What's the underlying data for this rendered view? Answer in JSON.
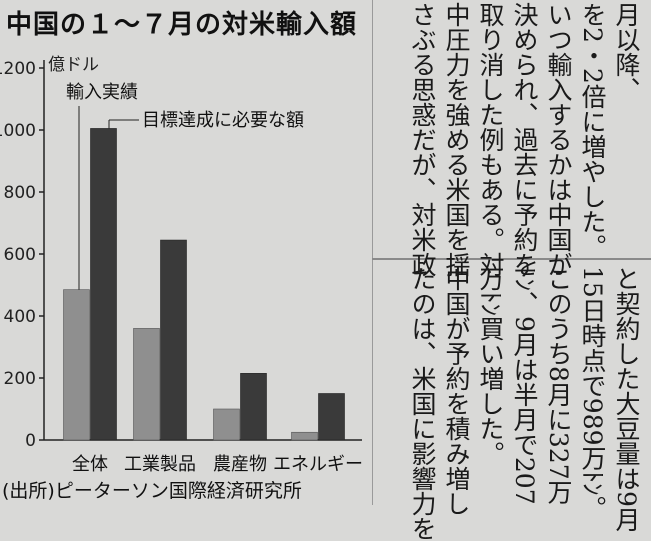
{
  "chart": {
    "title": "中国の１～７月の対米輸入額",
    "unit": "億ドル",
    "series_labels": {
      "actual": "輸入実績",
      "target": "目標達成に必要な額"
    },
    "source": "(出所)ピーターソン国際経済研究所",
    "colors": {
      "actual": "#8f8f8f",
      "target": "#3a3a3a",
      "axis": "#222222"
    }
  },
  "chart_data": {
    "type": "bar",
    "title": "中国の１～７月の対米輸入額",
    "ylabel": "億ドル",
    "categories": [
      "全体",
      "工業製品",
      "農産物",
      "エネルギー"
    ],
    "series": [
      {
        "name": "輸入実績",
        "values": [
          485,
          360,
          100,
          25
        ]
      },
      {
        "name": "目標達成に必要な額",
        "values": [
          1005,
          645,
          215,
          150
        ]
      }
    ],
    "ylim": [
      0,
      1200
    ],
    "yticks": [
      0,
      200,
      400,
      600,
      800,
      1000,
      1200
    ],
    "grid": false
  },
  "article": {
    "top_columns": [
      "月以降、",
      "を2・2倍に増やした。",
      "いつ輸入するかは中国が",
      "決められ、過去に予約を",
      "取り消した例もある。対",
      "中圧力を強める米国を揺",
      "さぶる思惑だが、対米政"
    ],
    "bottom_columns": [
      "と契約した大豆量は9月",
      "15日時点で989万ﾄﾝ。",
      "このうち8月に327万",
      "ﾄﾝ、9月は半月で207",
      "万ﾄﾝ買い増した。",
      "中国が予約を積み増し",
      "たのは、米国に影響力を"
    ]
  }
}
